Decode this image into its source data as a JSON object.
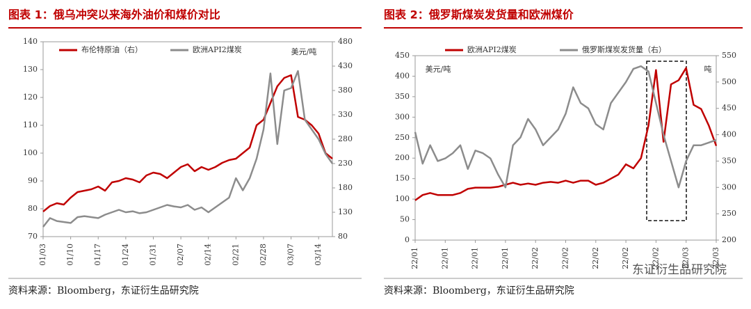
{
  "chart_data": [
    {
      "type": "line",
      "title": "图表 1：俄乌冲突以来海外油价和煤价对比",
      "categories": [
        "01/03",
        null,
        null,
        null,
        "01/10",
        null,
        null,
        null,
        "01/17",
        null,
        null,
        null,
        "01/24",
        null,
        null,
        null,
        "01/31",
        null,
        null,
        null,
        "02/07",
        null,
        null,
        null,
        "02/14",
        null,
        null,
        null,
        "02/21",
        null,
        null,
        null,
        "02/28",
        null,
        null,
        null,
        "03/07",
        null,
        null,
        null,
        "03/14",
        null,
        null
      ],
      "series": [
        {
          "name": "布伦特原油（右）",
          "color": "#c00000",
          "values": [
            79,
            81,
            82,
            81.5,
            84,
            86,
            86.5,
            87,
            88,
            86.5,
            89.5,
            90,
            91,
            90.5,
            89.5,
            92,
            93,
            92.5,
            91,
            93,
            95,
            96,
            93.5,
            95,
            94,
            95,
            96.5,
            97.5,
            98,
            100,
            102,
            110,
            112,
            118,
            124,
            127,
            128,
            113,
            112,
            110,
            107,
            100,
            98
          ]
        },
        {
          "name": "欧洲API2煤炭",
          "color": "#8c8c8c",
          "axis": "y2",
          "values": [
            100,
            118,
            112,
            110,
            108,
            120,
            122,
            120,
            118,
            125,
            130,
            135,
            130,
            132,
            128,
            130,
            135,
            140,
            145,
            142,
            140,
            145,
            135,
            140,
            130,
            140,
            150,
            160,
            200,
            175,
            200,
            240,
            300,
            415,
            270,
            380,
            385,
            420,
            320,
            300,
            280,
            250,
            230
          ]
        }
      ],
      "ylim": [
        70,
        140
      ],
      "yticks": [
        70,
        80,
        90,
        100,
        110,
        120,
        130,
        140
      ],
      "y2lim": [
        80,
        480
      ],
      "y2ticks": [
        80,
        130,
        180,
        230,
        280,
        330,
        380,
        430,
        480
      ],
      "y2_unit": "美元/吨",
      "legend": "upper left",
      "source": "资料来源：Bloomberg，东证衍生品研究院"
    },
    {
      "type": "line",
      "title": "图表 2：俄罗斯煤炭发货量和欧洲煤价",
      "categories": [
        "22/01",
        null,
        null,
        null,
        "22/01",
        null,
        null,
        null,
        "22/01",
        null,
        null,
        null,
        "22/01",
        null,
        null,
        null,
        "22/02",
        null,
        null,
        null,
        "22/02",
        null,
        null,
        null,
        "22/02",
        null,
        null,
        null,
        "22/02",
        null,
        null,
        null,
        "22/02",
        null,
        null,
        null,
        "22/03",
        null,
        null,
        null,
        "22/03"
      ],
      "series": [
        {
          "name": "欧洲API2煤炭",
          "color": "#c00000",
          "values": [
            97,
            110,
            115,
            110,
            110,
            110,
            115,
            125,
            128,
            128,
            128,
            130,
            135,
            140,
            135,
            138,
            135,
            140,
            142,
            140,
            145,
            140,
            145,
            145,
            135,
            140,
            150,
            160,
            185,
            175,
            200,
            280,
            415,
            240,
            380,
            390,
            420,
            330,
            320,
            280,
            230
          ]
        },
        {
          "name": "俄罗斯煤炭发货量（右）",
          "color": "#8c8c8c",
          "axis": "y2",
          "values": [
            405,
            345,
            380,
            350,
            355,
            365,
            380,
            335,
            370,
            365,
            355,
            325,
            300,
            380,
            395,
            430,
            410,
            380,
            395,
            410,
            440,
            490,
            460,
            450,
            420,
            410,
            460,
            480,
            500,
            525,
            530,
            520,
            460,
            400,
            350,
            300,
            350,
            380,
            380,
            385,
            390
          ]
        }
      ],
      "ylim": [
        0,
        450
      ],
      "yticks": [
        0,
        50,
        100,
        150,
        200,
        250,
        300,
        350,
        400,
        450
      ],
      "y2lim": [
        200,
        550
      ],
      "y2ticks": [
        200,
        250,
        300,
        350,
        400,
        450,
        500,
        550
      ],
      "y_unit": "美元/吨",
      "y2_unit": "吨",
      "legend": "upper center",
      "source": "资料来源：Bloomberg，东证衍生品研究院"
    }
  ],
  "watermark": "东证衍生品研究院"
}
